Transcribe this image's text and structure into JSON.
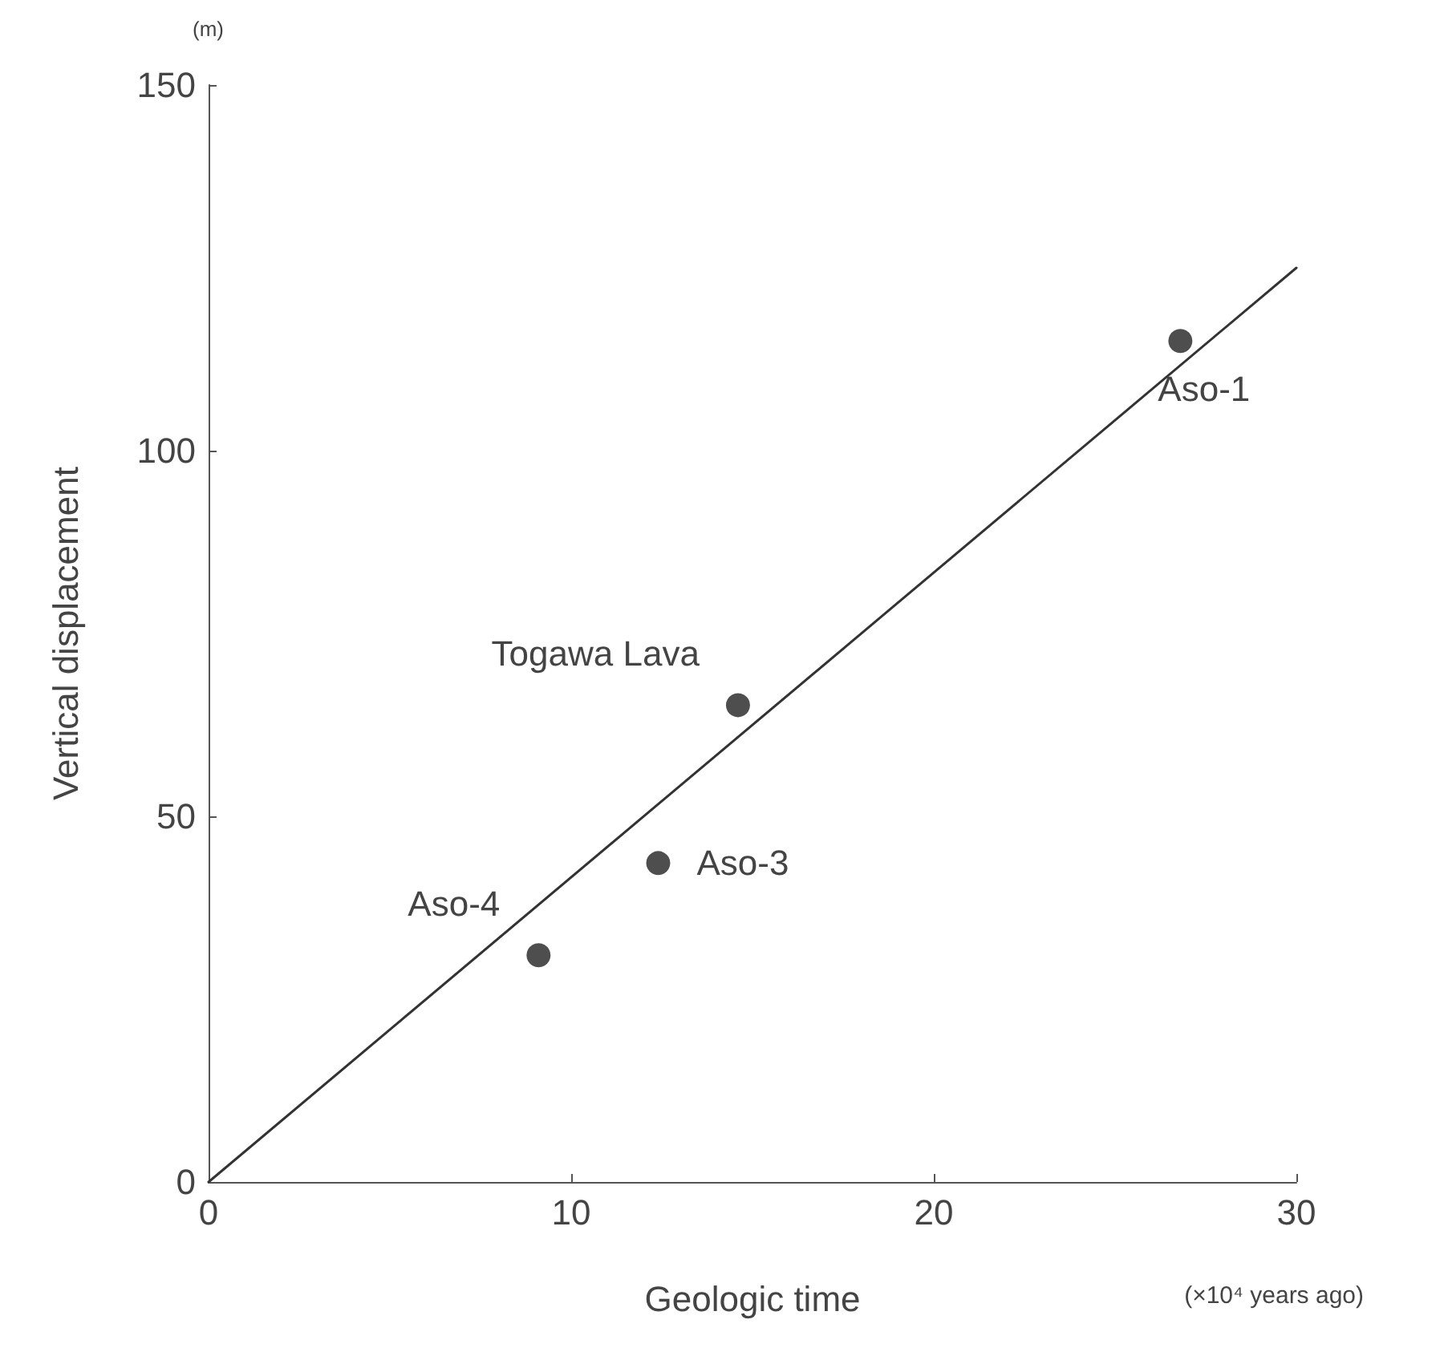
{
  "chart_data": {
    "type": "scatter",
    "xlabel": "Geologic time",
    "ylabel": "Vertical displacement",
    "xlim": [
      0,
      30
    ],
    "xticks": [
      0,
      10,
      20,
      30
    ],
    "ylim": [
      0,
      150
    ],
    "yticks": [
      0,
      50,
      100,
      150
    ],
    "grid": false,
    "marker": "circle",
    "series": [
      {
        "color": "#222222",
        "x": [
          9.1,
          12.4,
          14.6,
          26.8
        ],
        "values": [
          31,
          43.6,
          65.2,
          115
        ]
      },
      {
        "type": "line",
        "color": "#333333",
        "x": [
          0,
          30
        ],
        "values": [
          0,
          125
        ],
        "marker": "none",
        "line_style": "solid"
      }
    ],
    "annotations": [
      {
        "text": "Aso-4",
        "x": 9.1,
        "y": 31
      },
      {
        "text": "Aso-3",
        "x": 12.4,
        "y": 43.6
      },
      {
        "text": "Togawa Lava",
        "x": 14.6,
        "y": 65.2
      },
      {
        "text": "Aso-1",
        "x": 26.8,
        "y": 115
      },
      "(m)",
      "(×10⁴ years ago)"
    ]
  }
}
